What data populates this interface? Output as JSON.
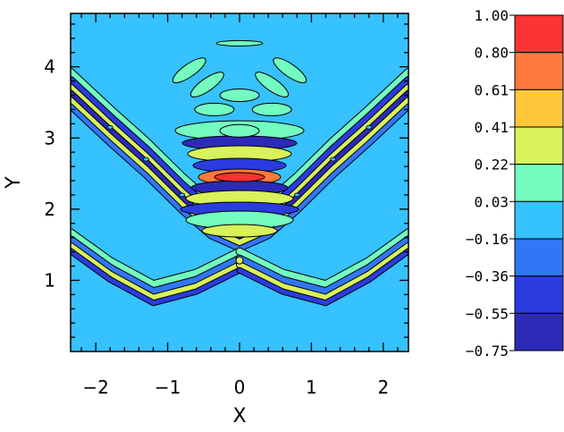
{
  "chart_data": {
    "type": "contour",
    "xlabel": "X",
    "ylabel": "Y",
    "xlim": [
      -2.35,
      2.35
    ],
    "ylim": [
      0.0,
      4.75
    ],
    "xticks": [
      -2,
      -1,
      0,
      1,
      2
    ],
    "xtick_labels": [
      "−2",
      "−1",
      "0",
      "1",
      "2"
    ],
    "yticks": [
      1,
      2,
      3,
      4
    ],
    "ytick_labels": [
      "1",
      "2",
      "3",
      "4"
    ],
    "grid": false,
    "colorbar": {
      "levels": [
        1.0,
        0.8,
        0.61,
        0.41,
        0.22,
        0.03,
        -0.16,
        -0.36,
        -0.55,
        -0.75
      ],
      "level_labels": [
        "1.00",
        "0.80",
        "0.61",
        "0.41",
        "0.22",
        "0.03",
        "−0.16",
        "−0.36",
        "−0.55",
        "−0.75"
      ],
      "band_colors": [
        "#fa3333",
        "#ff7a3c",
        "#ffc73c",
        "#d8f25a",
        "#73fcbf",
        "#36c1ff",
        "#3276f8",
        "#2a3ce0",
        "#2c2ab8",
        "#2f3266"
      ]
    },
    "background_level_color": "#36c1ff",
    "features": [
      {
        "name": "upper-v-branch-left",
        "path": [
          [
            -2.35,
            3.72
          ],
          [
            -1.8,
            3.2
          ],
          [
            -1.3,
            2.75
          ],
          [
            -0.8,
            2.25
          ],
          [
            -0.4,
            1.9
          ],
          [
            0.0,
            1.72
          ]
        ]
      },
      {
        "name": "upper-v-branch-right",
        "path": [
          [
            0.0,
            1.72
          ],
          [
            0.4,
            1.9
          ],
          [
            0.8,
            2.25
          ],
          [
            1.3,
            2.75
          ],
          [
            1.8,
            3.2
          ],
          [
            2.35,
            3.72
          ]
        ]
      },
      {
        "name": "lower-x-branch-left",
        "path": [
          [
            -2.35,
            1.55
          ],
          [
            -1.8,
            1.15
          ],
          [
            -1.2,
            0.82
          ],
          [
            -0.6,
            0.98
          ],
          [
            0.0,
            1.28
          ]
        ]
      },
      {
        "name": "lower-x-branch-right",
        "path": [
          [
            0.0,
            1.28
          ],
          [
            0.6,
            0.98
          ],
          [
            1.2,
            0.82
          ],
          [
            1.8,
            1.15
          ],
          [
            2.35,
            1.55
          ]
        ]
      },
      {
        "name": "central-fringe-max",
        "center": [
          0.0,
          2.45
        ],
        "value": 1.0
      },
      {
        "name": "top-lobe",
        "center": [
          0.0,
          4.33
        ],
        "value": 0.22
      }
    ]
  }
}
